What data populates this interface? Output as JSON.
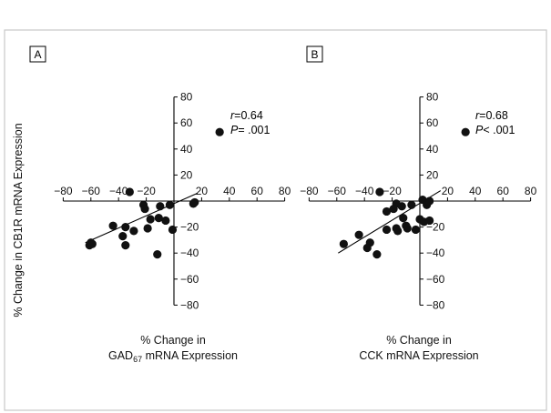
{
  "y_label": "% Change in CB1R mRNA Expression",
  "chart_data": [
    {
      "type": "scatter",
      "panel": "A",
      "stat_r": "0.64",
      "stat_p": "= .001",
      "xlabel": [
        "% Change in",
        "GAD67 mRNA Expression"
      ],
      "xlabel_sub": "67",
      "ylabel": "% Change in CB1R mRNA Expression",
      "xlim": [
        -80,
        80
      ],
      "ylim": [
        -80,
        80
      ],
      "xticks": [
        -80,
        -60,
        -40,
        -20,
        20,
        40,
        60,
        80
      ],
      "yticks": [
        80,
        60,
        40,
        20,
        -20,
        -40,
        -60,
        -80
      ],
      "fit_line": [
        [
          -64,
          -32
        ],
        [
          17,
          6
        ]
      ],
      "points": [
        [
          33,
          53
        ],
        [
          -32,
          7
        ],
        [
          -22,
          -3
        ],
        [
          -21,
          -6
        ],
        [
          -10,
          -4
        ],
        [
          -3,
          -3
        ],
        [
          14,
          -2
        ],
        [
          15,
          -1
        ],
        [
          -17,
          -14
        ],
        [
          -11,
          -13
        ],
        [
          -6,
          -15
        ],
        [
          -44,
          -19
        ],
        [
          -35,
          -20
        ],
        [
          -29,
          -23
        ],
        [
          -19,
          -21
        ],
        [
          -1,
          -22
        ],
        [
          -37,
          -27
        ],
        [
          -60,
          -32
        ],
        [
          -61,
          -34
        ],
        [
          -59,
          -33
        ],
        [
          -35,
          -34
        ],
        [
          -12,
          -41
        ]
      ]
    },
    {
      "type": "scatter",
      "panel": "B",
      "stat_r": "0.68",
      "stat_p": "< .001",
      "xlabel": [
        "% Change in",
        "CCK mRNA Expression"
      ],
      "ylabel": "% Change in CB1R mRNA Expression",
      "xlim": [
        -80,
        80
      ],
      "ylim": [
        -80,
        80
      ],
      "xticks": [
        -80,
        -60,
        -40,
        -20,
        20,
        40,
        60,
        80
      ],
      "yticks": [
        80,
        60,
        40,
        20,
        -20,
        -40,
        -60,
        -80
      ],
      "fit_line": [
        [
          -59,
          -40
        ],
        [
          15,
          8
        ]
      ],
      "points": [
        [
          33,
          53
        ],
        [
          -29,
          7
        ],
        [
          -17,
          -2
        ],
        [
          -13,
          -4
        ],
        [
          -6,
          -3
        ],
        [
          2,
          1
        ],
        [
          5,
          -3
        ],
        [
          7,
          0
        ],
        [
          -24,
          -8
        ],
        [
          -19,
          -6
        ],
        [
          -12,
          -13
        ],
        [
          0,
          -14
        ],
        [
          3,
          -16
        ],
        [
          7,
          -15
        ],
        [
          -24,
          -22
        ],
        [
          -17,
          -21
        ],
        [
          -10,
          -19
        ],
        [
          -9,
          -21
        ],
        [
          -16,
          -23
        ],
        [
          -3,
          -22
        ],
        [
          -44,
          -26
        ],
        [
          -55,
          -33
        ],
        [
          -36,
          -32
        ],
        [
          -38,
          -36
        ],
        [
          -31,
          -41
        ]
      ]
    }
  ]
}
